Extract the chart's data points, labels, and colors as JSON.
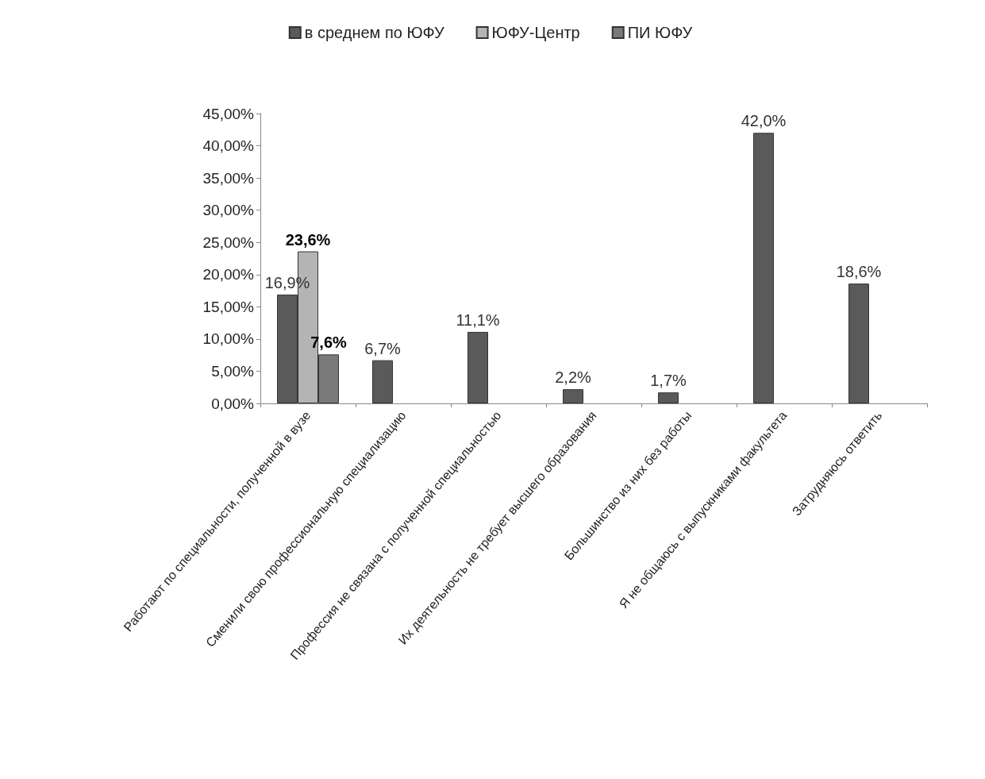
{
  "chart_data": {
    "type": "bar",
    "categories": [
      "Работают по специальности, полученной в вузе",
      "Сменили свою профессиональную специализацию",
      "Профессия не связана с полученной специальностью",
      "Их деятельность не требует высшего образования",
      "Большинство из них без работы",
      "Я не общаюсь с выпускниками факультета",
      "Затрудняюсь ответить"
    ],
    "series": [
      {
        "name": "в среднем по ЮФУ",
        "color": "#5a5a5a",
        "values": [
          16.9,
          6.7,
          11.1,
          2.2,
          1.7,
          42.0,
          18.6
        ],
        "value_labels": [
          "16,9%",
          "6,7%",
          "11,1%",
          "2,2%",
          "1,7%",
          "42,0%",
          "18,6%"
        ]
      },
      {
        "name": "ЮФУ-Центр",
        "color": "#b4b4b4",
        "values": [
          23.6,
          null,
          null,
          null,
          null,
          null,
          null
        ],
        "value_labels": [
          "23,6%",
          null,
          null,
          null,
          null,
          null,
          null
        ]
      },
      {
        "name": "ПИ ЮФУ",
        "color": "#7a7a7a",
        "values": [
          7.6,
          null,
          null,
          null,
          null,
          null,
          null
        ],
        "value_labels": [
          "7,6%",
          null,
          null,
          null,
          null,
          null,
          null
        ]
      }
    ],
    "ylim": [
      0,
      45
    ],
    "yticks": [
      {
        "value": 0,
        "label": "0,00%"
      },
      {
        "value": 5,
        "label": "5,00%"
      },
      {
        "value": 10,
        "label": "10,00%"
      },
      {
        "value": 15,
        "label": "15,00%"
      },
      {
        "value": 20,
        "label": "20,00%"
      },
      {
        "value": 25,
        "label": "25,00%"
      },
      {
        "value": 30,
        "label": "30,00%"
      },
      {
        "value": 35,
        "label": "35,00%"
      },
      {
        "value": 40,
        "label": "40,00%"
      },
      {
        "value": 45,
        "label": "45,00%"
      }
    ],
    "grid": false,
    "legend": "top"
  }
}
